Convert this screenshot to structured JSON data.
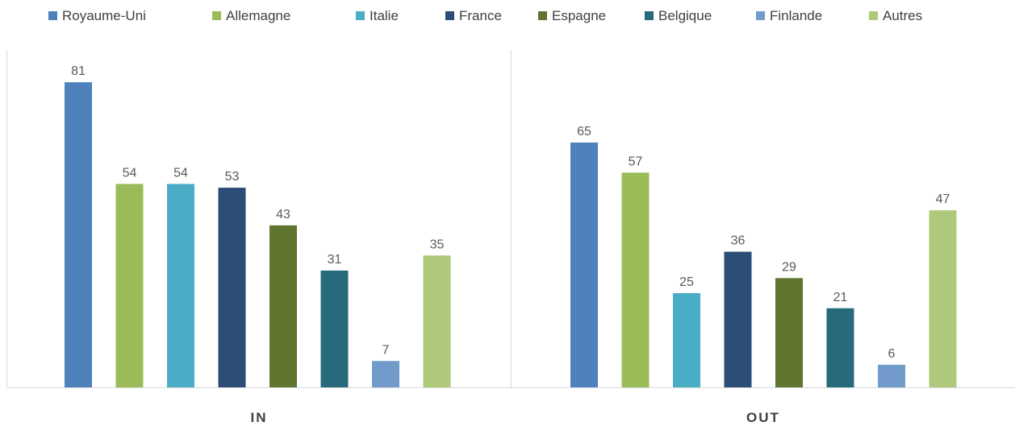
{
  "chart_data": {
    "type": "bar",
    "categories": [
      "IN",
      "OUT"
    ],
    "series": [
      {
        "name": "Royaume-Uni",
        "color": "#4f81bd",
        "values": [
          81,
          65
        ]
      },
      {
        "name": "Allemagne",
        "color": "#9bbb59",
        "values": [
          54,
          57
        ]
      },
      {
        "name": "Italie",
        "color": "#4bacc6",
        "values": [
          54,
          25
        ]
      },
      {
        "name": "France",
        "color": "#2c4d75",
        "values": [
          53,
          36
        ]
      },
      {
        "name": "Espagne",
        "color": "#5f7530",
        "values": [
          43,
          29
        ]
      },
      {
        "name": "Belgique",
        "color": "#276a7c",
        "values": [
          31,
          21
        ]
      },
      {
        "name": "Finlande",
        "color": "#729aca",
        "values": [
          7,
          6
        ]
      },
      {
        "name": "Autres",
        "color": "#afc97a",
        "values": [
          35,
          47
        ]
      }
    ],
    "ylim": [
      0,
      90
    ],
    "grid": false,
    "legend_position": "top",
    "data_labels": true,
    "axis_color": "#d9d9d9"
  }
}
